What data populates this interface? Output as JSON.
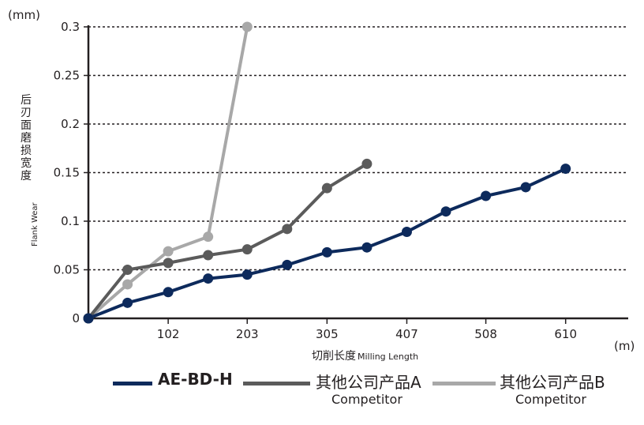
{
  "chart_data": {
    "type": "line",
    "y_unit": "(mm)",
    "x_unit": "(m)",
    "ylabel_cn": [
      "后",
      "刃",
      "面",
      "磨",
      "损",
      "宽",
      "度"
    ],
    "ylabel_en": "Flank Wear",
    "xlabel_cn": "切削长度",
    "xlabel_en": "Milling Length",
    "xlim": [
      0,
      690
    ],
    "ylim": [
      0,
      0.3
    ],
    "x_ticks": [
      {
        "value": 102,
        "label": "102"
      },
      {
        "value": 203,
        "label": "203"
      },
      {
        "value": 305,
        "label": "305"
      },
      {
        "value": 407,
        "label": "407"
      },
      {
        "value": 508,
        "label": "508"
      },
      {
        "value": 610,
        "label": "610"
      }
    ],
    "y_ticks": [
      {
        "value": 0,
        "label": "0"
      },
      {
        "value": 0.05,
        "label": "0.05"
      },
      {
        "value": 0.1,
        "label": "0.1"
      },
      {
        "value": 0.15,
        "label": "0.15"
      },
      {
        "value": 0.2,
        "label": "0.2"
      },
      {
        "value": 0.25,
        "label": "0.25"
      },
      {
        "value": 0.3,
        "label": "0.3"
      }
    ],
    "grid": "horizontal-dotted",
    "legend_position": "bottom",
    "series": [
      {
        "name": "AE-BD-H",
        "color": "#0d2a5c",
        "points": [
          [
            0,
            0
          ],
          [
            50,
            0.016
          ],
          [
            102,
            0.027
          ],
          [
            153,
            0.041
          ],
          [
            203,
            0.045
          ],
          [
            254,
            0.055
          ],
          [
            305,
            0.068
          ],
          [
            356,
            0.073
          ],
          [
            407,
            0.089
          ],
          [
            457,
            0.11
          ],
          [
            508,
            0.126
          ],
          [
            559,
            0.135
          ],
          [
            610,
            0.154
          ]
        ]
      },
      {
        "name": "其他公司产品A",
        "color": "#5b5b5b",
        "points": [
          [
            0,
            0
          ],
          [
            50,
            0.05
          ],
          [
            102,
            0.057
          ],
          [
            153,
            0.065
          ],
          [
            203,
            0.071
          ],
          [
            254,
            0.092
          ],
          [
            305,
            0.134
          ],
          [
            356,
            0.159
          ]
        ]
      },
      {
        "name": "其他公司产品B",
        "color": "#a8a8a8",
        "points": [
          [
            0,
            0
          ],
          [
            50,
            0.035
          ],
          [
            102,
            0.069
          ],
          [
            153,
            0.084
          ],
          [
            203,
            0.3
          ]
        ]
      }
    ]
  },
  "legend": [
    {
      "title": "AE-BD-H",
      "subtitle": "",
      "color": "#0d2a5c"
    },
    {
      "title": "其他公司产品A",
      "subtitle": "Competitor",
      "color": "#5b5b5b"
    },
    {
      "title": "其他公司产品B",
      "subtitle": "Competitor",
      "color": "#a8a8a8"
    }
  ]
}
